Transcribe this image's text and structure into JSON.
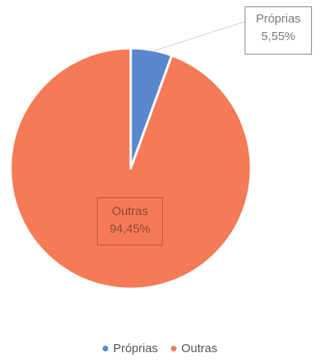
{
  "chart_data": {
    "type": "pie",
    "slices": [
      {
        "label": "Próprias",
        "value": 5.55,
        "display": "5,55%",
        "color": "#5a86cd"
      },
      {
        "label": "Outras",
        "value": 94.45,
        "display": "94,45%",
        "color": "#f57a55"
      }
    ],
    "legend_position": "bottom",
    "legend": [
      "Próprias",
      "Outras"
    ]
  }
}
